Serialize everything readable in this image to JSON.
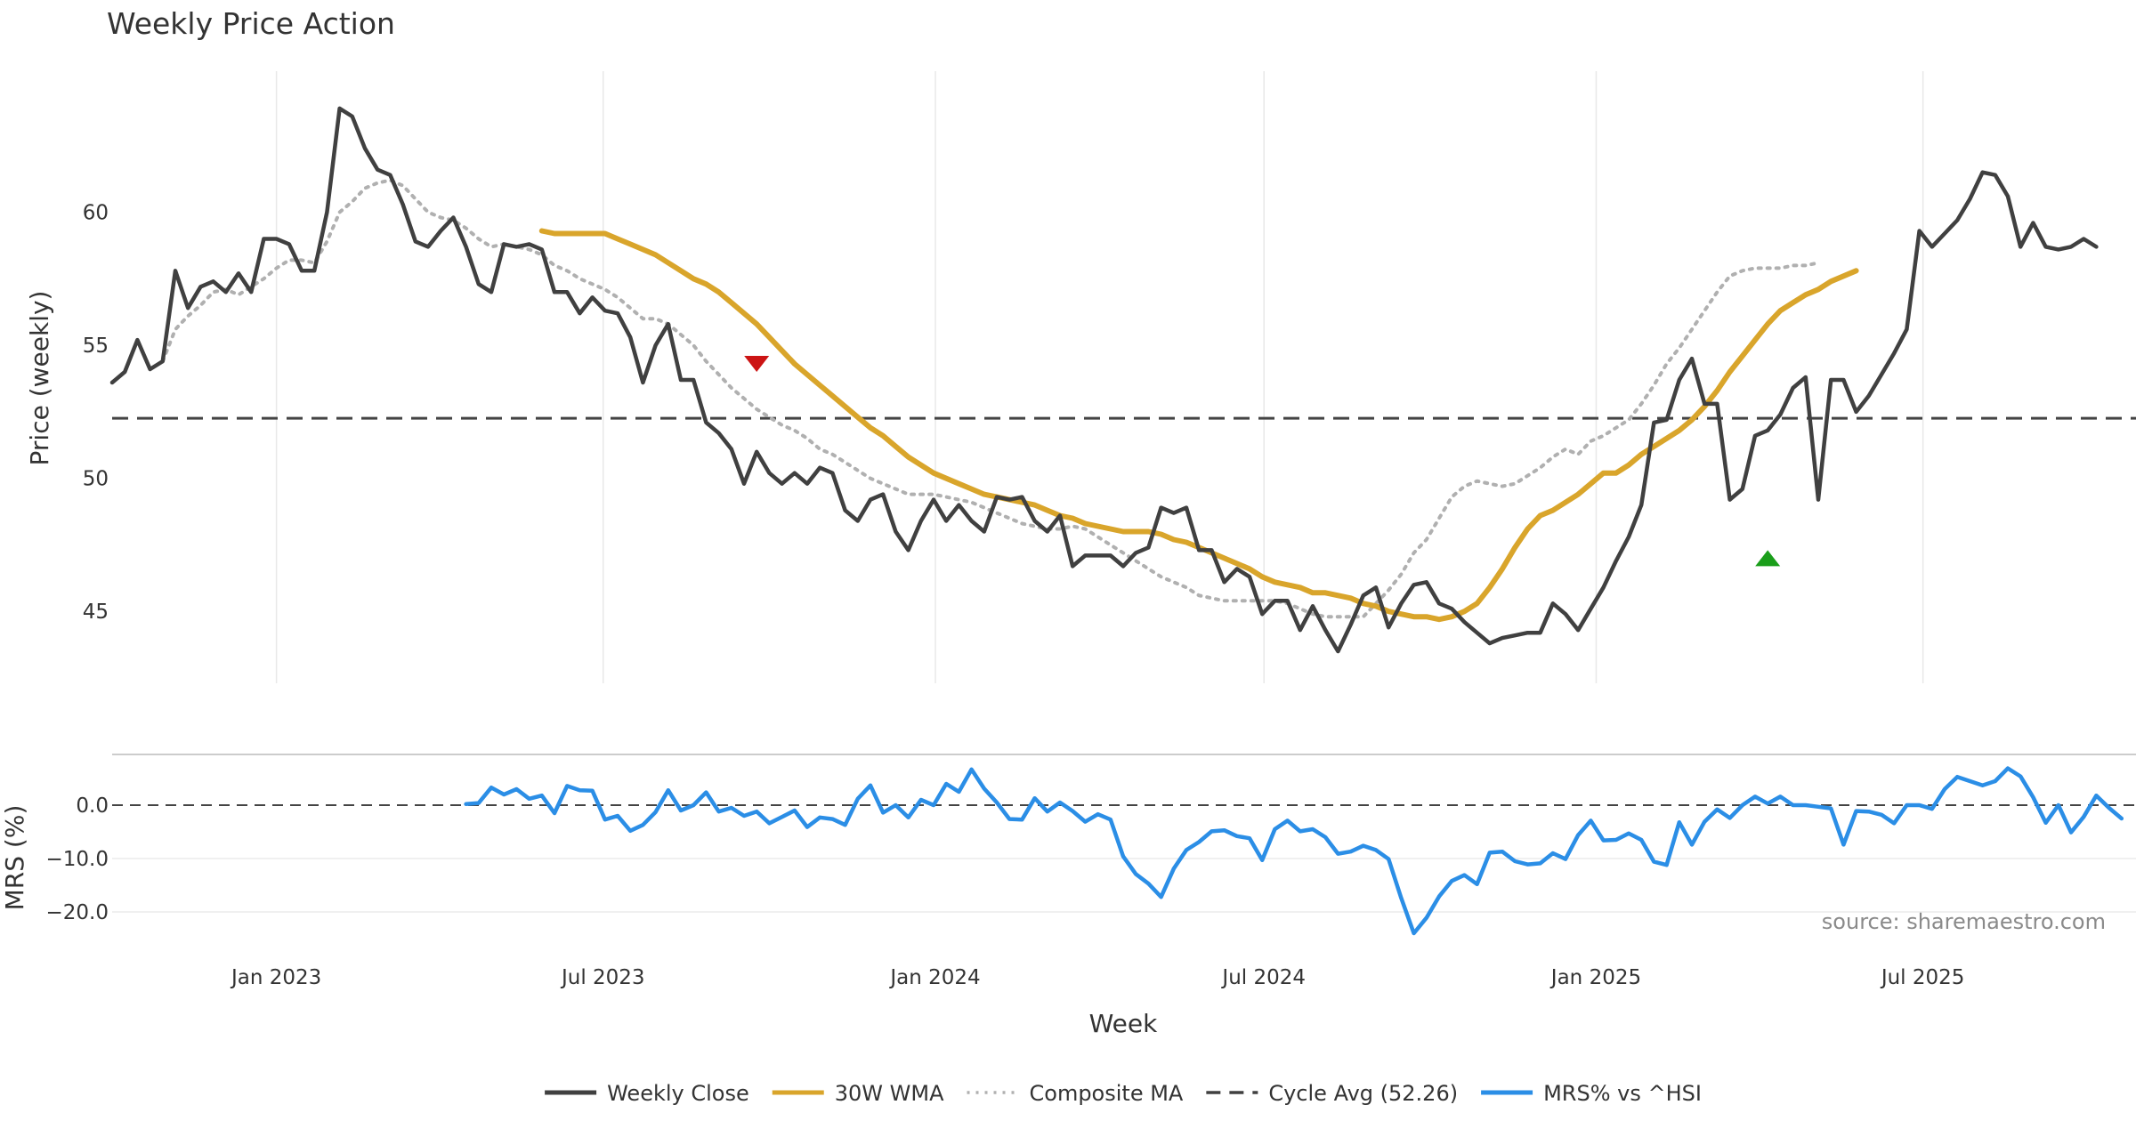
{
  "chart_data": {
    "type": "line",
    "title": "Weekly Price Action",
    "xlabel": "Week",
    "source": "source: sharemaestro.com",
    "x_ticks": [
      {
        "date": "2023-01-01",
        "label": "Jan 2023"
      },
      {
        "date": "2023-07-01",
        "label": "Jul 2023"
      },
      {
        "date": "2024-01-01",
        "label": "Jan 2024"
      },
      {
        "date": "2024-07-01",
        "label": "Jul 2024"
      },
      {
        "date": "2025-01-01",
        "label": "Jan 2025"
      },
      {
        "date": "2025-07-01",
        "label": "Jul 2025"
      }
    ],
    "x_range": [
      "2022-10-02",
      "2025-10-27"
    ],
    "price_panel": {
      "ylabel": "Price (weekly)",
      "ylim": [
        42.3,
        65.3
      ],
      "yticks": [
        {
          "value": 45,
          "label": "45"
        },
        {
          "value": 50,
          "label": "50"
        },
        {
          "value": 55,
          "label": "55"
        },
        {
          "value": 60,
          "label": "60"
        }
      ],
      "cycle_avg": 52.26,
      "series": [
        {
          "name": "Weekly Close",
          "color": "#404040",
          "style": "solid",
          "start": "2022-10-02",
          "values": [
            53.6,
            54.0,
            55.2,
            54.1,
            54.4,
            57.8,
            56.4,
            57.2,
            57.4,
            57.0,
            57.7,
            57.0,
            59.0,
            59.0,
            58.8,
            57.8,
            57.8,
            60.0,
            63.9,
            63.6,
            62.4,
            61.6,
            61.4,
            60.3,
            58.9,
            58.7,
            59.3,
            59.8,
            58.7,
            57.3,
            57.0,
            58.8,
            58.7,
            58.8,
            58.6,
            57.0,
            57.0,
            56.2,
            56.8,
            56.3,
            56.2,
            55.3,
            53.6,
            55.0,
            55.8,
            53.7,
            53.7,
            52.1,
            51.7,
            51.1,
            49.8,
            51.0,
            50.2,
            49.8,
            50.2,
            49.8,
            50.4,
            50.2,
            48.8,
            48.4,
            49.2,
            49.4,
            48.0,
            47.3,
            48.4,
            49.2,
            48.4,
            49.0,
            48.4,
            48.0,
            49.3,
            49.2,
            49.3,
            48.4,
            48.0,
            48.6,
            46.7,
            47.1,
            47.1,
            47.1,
            46.7,
            47.2,
            47.4,
            48.9,
            48.7,
            48.9,
            47.3,
            47.3,
            46.1,
            46.6,
            46.3,
            44.9,
            45.4,
            45.4,
            44.3,
            45.2,
            44.3,
            43.5,
            44.5,
            45.6,
            45.9,
            44.4,
            45.3,
            46.0,
            46.1,
            45.3,
            45.1,
            44.6,
            44.2,
            43.8,
            44.0,
            44.1,
            44.2,
            44.2,
            45.3,
            44.9,
            44.3,
            45.1,
            45.9,
            46.9,
            47.8,
            49.0,
            52.1,
            52.2,
            53.7,
            54.5,
            52.8,
            52.8,
            49.2,
            49.6,
            51.6,
            51.8,
            52.4,
            53.4,
            53.8,
            49.2,
            53.7,
            53.7,
            52.5,
            53.1,
            53.9,
            54.7,
            55.6,
            59.3,
            58.7,
            59.2,
            59.7,
            60.5,
            61.5,
            61.4,
            60.6,
            58.7,
            59.6,
            58.7,
            58.6,
            58.7,
            59.0,
            58.7
          ]
        },
        {
          "name": "30W WMA",
          "color": "#d9a52b",
          "style": "solid",
          "start": "2023-05-28",
          "values": [
            59.3,
            59.2,
            59.2,
            59.2,
            59.2,
            59.2,
            59.0,
            58.8,
            58.6,
            58.4,
            58.1,
            57.8,
            57.5,
            57.3,
            57.0,
            56.6,
            56.2,
            55.8,
            55.3,
            54.8,
            54.3,
            53.9,
            53.5,
            53.1,
            52.7,
            52.3,
            51.9,
            51.6,
            51.2,
            50.8,
            50.5,
            50.2,
            50.0,
            49.8,
            49.6,
            49.4,
            49.3,
            49.2,
            49.1,
            49.0,
            48.8,
            48.6,
            48.5,
            48.3,
            48.2,
            48.1,
            48.0,
            48.0,
            48.0,
            47.9,
            47.7,
            47.6,
            47.4,
            47.2,
            47.0,
            46.8,
            46.6,
            46.3,
            46.1,
            46.0,
            45.9,
            45.7,
            45.7,
            45.6,
            45.5,
            45.3,
            45.2,
            45.0,
            44.9,
            44.8,
            44.8,
            44.7,
            44.8,
            45.0,
            45.3,
            45.9,
            46.6,
            47.4,
            48.1,
            48.6,
            48.8,
            49.1,
            49.4,
            49.8,
            50.2,
            50.2,
            50.5,
            50.9,
            51.2,
            51.5,
            51.8,
            52.2,
            52.7,
            53.3,
            54.0,
            54.6,
            55.2,
            55.8,
            56.3,
            56.6,
            56.9,
            57.1,
            57.4,
            57.6,
            57.8
          ]
        },
        {
          "name": "Composite MA",
          "color": "#b0b0b0",
          "style": "dotted",
          "start": "2022-10-02",
          "values": [
            null,
            null,
            null,
            null,
            54.4,
            55.6,
            56.1,
            56.5,
            57.0,
            57.1,
            56.9,
            57.2,
            57.5,
            57.9,
            58.2,
            58.2,
            58.1,
            58.9,
            60.0,
            60.4,
            60.9,
            61.1,
            61.2,
            61.0,
            60.5,
            60.0,
            59.8,
            59.7,
            59.4,
            59.0,
            58.7,
            58.8,
            58.7,
            58.6,
            58.4,
            58.0,
            57.8,
            57.5,
            57.3,
            57.1,
            56.8,
            56.4,
            56.0,
            56.0,
            55.8,
            55.4,
            55.0,
            54.4,
            53.9,
            53.4,
            53.0,
            52.6,
            52.3,
            52.0,
            51.8,
            51.5,
            51.1,
            50.9,
            50.6,
            50.3,
            50.0,
            49.8,
            49.6,
            49.4,
            49.4,
            49.4,
            49.3,
            49.2,
            49.1,
            48.9,
            48.7,
            48.5,
            48.3,
            48.2,
            48.1,
            48.1,
            48.2,
            48.1,
            47.8,
            47.5,
            47.2,
            46.9,
            46.6,
            46.3,
            46.1,
            45.9,
            45.6,
            45.5,
            45.4,
            45.4,
            45.4,
            45.4,
            45.4,
            45.3,
            45.1,
            44.9,
            44.8,
            44.8,
            44.8,
            44.8,
            45.3,
            45.8,
            46.4,
            47.2,
            47.7,
            48.5,
            49.3,
            49.7,
            49.9,
            49.8,
            49.7,
            49.8,
            50.1,
            50.4,
            50.8,
            51.1,
            50.9,
            51.4,
            51.6,
            51.9,
            52.2,
            52.8,
            53.5,
            54.3,
            54.9,
            55.6,
            56.3,
            57.0,
            57.6,
            57.8,
            57.9,
            57.9,
            57.9,
            58.0,
            58.0,
            58.1
          ]
        }
      ],
      "markers": [
        {
          "type": "sell",
          "shape": "down-triangle",
          "color": "#cc1414",
          "date": "2023-09-24",
          "value": 54.3
        },
        {
          "type": "buy",
          "shape": "up-triangle",
          "color": "#1a9e1a",
          "date": "2025-04-06",
          "value": 47.0
        }
      ]
    },
    "mrs_panel": {
      "ylabel": "MRS (%)",
      "ylim": [
        -25.5,
        9.5
      ],
      "yticks": [
        {
          "value": 0,
          "label": "0.0"
        },
        {
          "value": -10,
          "label": "−10.0"
        },
        {
          "value": -20,
          "label": "−20.0"
        }
      ],
      "zero_line": 0,
      "series": [
        {
          "name": "MRS% vs ^HSI",
          "color": "#2b8ee6",
          "style": "solid",
          "start": "2023-04-16",
          "values": [
            0.2,
            0.4,
            3.3,
            2.0,
            3.0,
            1.2,
            1.8,
            -1.5,
            3.6,
            2.8,
            2.7,
            -2.7,
            -2.0,
            -4.8,
            -3.7,
            -1.3,
            2.8,
            -1.0,
            0.0,
            2.4,
            -1.2,
            -0.5,
            -2.0,
            -1.2,
            -3.4,
            -2.2,
            -1.0,
            -4.1,
            -2.3,
            -2.6,
            -3.7,
            1.2,
            3.7,
            -1.4,
            0.0,
            -2.3,
            1.0,
            0.0,
            4.0,
            2.5,
            6.7,
            3.1,
            0.5,
            -2.6,
            -2.7,
            1.3,
            -1.2,
            0.5,
            -1.1,
            -3.1,
            -1.7,
            -2.7,
            -9.6,
            -12.9,
            -14.7,
            -17.2,
            -11.9,
            -8.4,
            -6.9,
            -4.9,
            -4.7,
            -5.8,
            -6.2,
            -10.3,
            -4.5,
            -2.9,
            -4.9,
            -4.5,
            -6.0,
            -9.1,
            -8.7,
            -7.6,
            -8.4,
            -10.1,
            -17.4,
            -24.0,
            -21.1,
            -17.1,
            -14.2,
            -13.1,
            -14.8,
            -8.9,
            -8.7,
            -10.5,
            -11.1,
            -10.9,
            -9.0,
            -10.1,
            -5.6,
            -2.9,
            -6.6,
            -6.5,
            -5.3,
            -6.5,
            -10.6,
            -11.2,
            -3.2,
            -7.4,
            -3.1,
            -0.8,
            -2.4,
            0.0,
            1.6,
            0.3,
            1.6,
            0.0,
            0.0,
            -0.3,
            -0.6,
            -7.4,
            -1.1,
            -1.2,
            -1.8,
            -3.4,
            0.0,
            0.0,
            -0.7,
            3.0,
            5.3,
            4.5,
            3.7,
            4.5,
            6.9,
            5.4,
            1.5,
            -3.3,
            0.0,
            -5.1,
            -2.2,
            1.8,
            -0.5,
            -2.5
          ]
        }
      ]
    },
    "legend": [
      {
        "label": "Weekly Close",
        "color": "#404040",
        "style": "solid"
      },
      {
        "label": "30W WMA",
        "color": "#d9a52b",
        "style": "solid"
      },
      {
        "label": "Composite MA",
        "color": "#b0b0b0",
        "style": "dotted"
      },
      {
        "label": "Cycle Avg (52.26)",
        "color": "#404040",
        "style": "dashed"
      },
      {
        "label": "MRS% vs ^HSI",
        "color": "#2b8ee6",
        "style": "solid"
      }
    ],
    "legend_position": "bottom-center"
  }
}
